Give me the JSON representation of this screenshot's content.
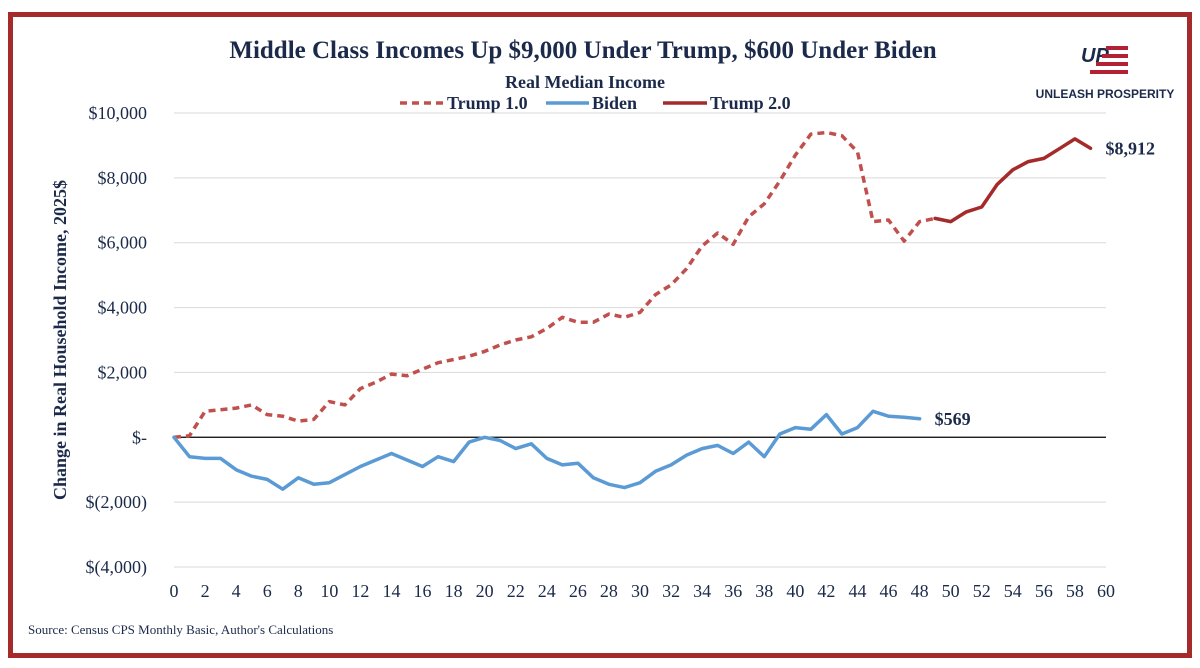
{
  "chart_data": {
    "type": "line",
    "title": "Middle Class Incomes Up $9,000 Under Trump, $600 Under Biden",
    "subtitle": "Real Median Income",
    "ylabel": "Change in Real Household Income, 2025$",
    "xlabel": "",
    "source": "Source: Census CPS Monthly Basic, Author's Calculations",
    "xlim": [
      0,
      60
    ],
    "ylim": [
      -4000,
      10000
    ],
    "x_ticks": [
      0,
      2,
      4,
      6,
      8,
      10,
      12,
      14,
      16,
      18,
      20,
      22,
      24,
      26,
      28,
      30,
      32,
      34,
      36,
      38,
      40,
      42,
      44,
      46,
      48,
      50,
      52,
      54,
      56,
      58,
      60
    ],
    "y_ticks": [
      -4000,
      -2000,
      0,
      2000,
      4000,
      6000,
      8000,
      10000
    ],
    "y_tick_labels": [
      "$(4,000)",
      "$(2,000)",
      "$-",
      "$2,000",
      "$4,000",
      "$6,000",
      "$8,000",
      "$10,000"
    ],
    "zero_line": true,
    "series": [
      {
        "name": "Trump 1.0",
        "color": "#c0504d",
        "style": "dashed",
        "x": [
          0,
          1,
          2,
          3,
          4,
          5,
          6,
          7,
          8,
          9,
          10,
          11,
          12,
          13,
          14,
          15,
          16,
          17,
          18,
          19,
          20,
          21,
          22,
          23,
          24,
          25,
          26,
          27,
          28,
          29,
          30,
          31,
          32,
          33,
          34,
          35,
          36,
          37,
          38,
          39,
          40,
          41,
          42,
          43,
          44,
          45,
          46,
          47,
          48,
          49
        ],
        "values": [
          0,
          50,
          800,
          850,
          900,
          1000,
          700,
          650,
          500,
          550,
          1100,
          1000,
          1500,
          1700,
          1950,
          1900,
          2100,
          2300,
          2400,
          2500,
          2650,
          2850,
          3000,
          3100,
          3350,
          3700,
          3550,
          3550,
          3800,
          3700,
          3850,
          4400,
          4700,
          5200,
          5900,
          6300,
          5950,
          6800,
          7200,
          7900,
          8700,
          9350,
          9400,
          9300,
          8800,
          6650,
          6700,
          6050,
          6650,
          6750
        ]
      },
      {
        "name": "Biden",
        "color": "#5b9bd5",
        "style": "solid",
        "x": [
          0,
          1,
          2,
          3,
          4,
          5,
          6,
          7,
          8,
          9,
          10,
          11,
          12,
          13,
          14,
          15,
          16,
          17,
          18,
          19,
          20,
          21,
          22,
          23,
          24,
          25,
          26,
          27,
          28,
          29,
          30,
          31,
          32,
          33,
          34,
          35,
          36,
          37,
          38,
          39,
          40,
          41,
          42,
          43,
          44,
          45,
          46,
          47,
          48
        ],
        "values": [
          0,
          -600,
          -650,
          -650,
          -1000,
          -1200,
          -1300,
          -1600,
          -1250,
          -1450,
          -1400,
          -1150,
          -900,
          -700,
          -500,
          -700,
          -900,
          -600,
          -750,
          -150,
          0,
          -100,
          -350,
          -200,
          -650,
          -850,
          -800,
          -1250,
          -1450,
          -1550,
          -1400,
          -1050,
          -850,
          -550,
          -350,
          -250,
          -500,
          -150,
          -600,
          100,
          300,
          250,
          700,
          100,
          300,
          800,
          650,
          620,
          569
        ]
      },
      {
        "name": "Trump 2.0",
        "color": "#a52a2a",
        "style": "solid",
        "x": [
          49,
          50,
          51,
          52,
          53,
          54,
          55,
          56,
          57,
          58,
          59
        ],
        "values": [
          6750,
          6650,
          6950,
          7100,
          7800,
          8250,
          8500,
          8600,
          8900,
          9200,
          8912
        ]
      }
    ],
    "end_labels": [
      {
        "series": "Trump 2.0",
        "text": "$8,912"
      },
      {
        "series": "Biden",
        "text": "$569"
      }
    ],
    "legend": {
      "placement": "top-center",
      "entries": [
        "Trump 1.0",
        "Biden",
        "Trump 2.0"
      ]
    }
  },
  "logo": {
    "text": "UNLEASH PROSPERITY",
    "mark": "UP",
    "colors": {
      "navy": "#1b2a4a",
      "red": "#b22234"
    }
  }
}
